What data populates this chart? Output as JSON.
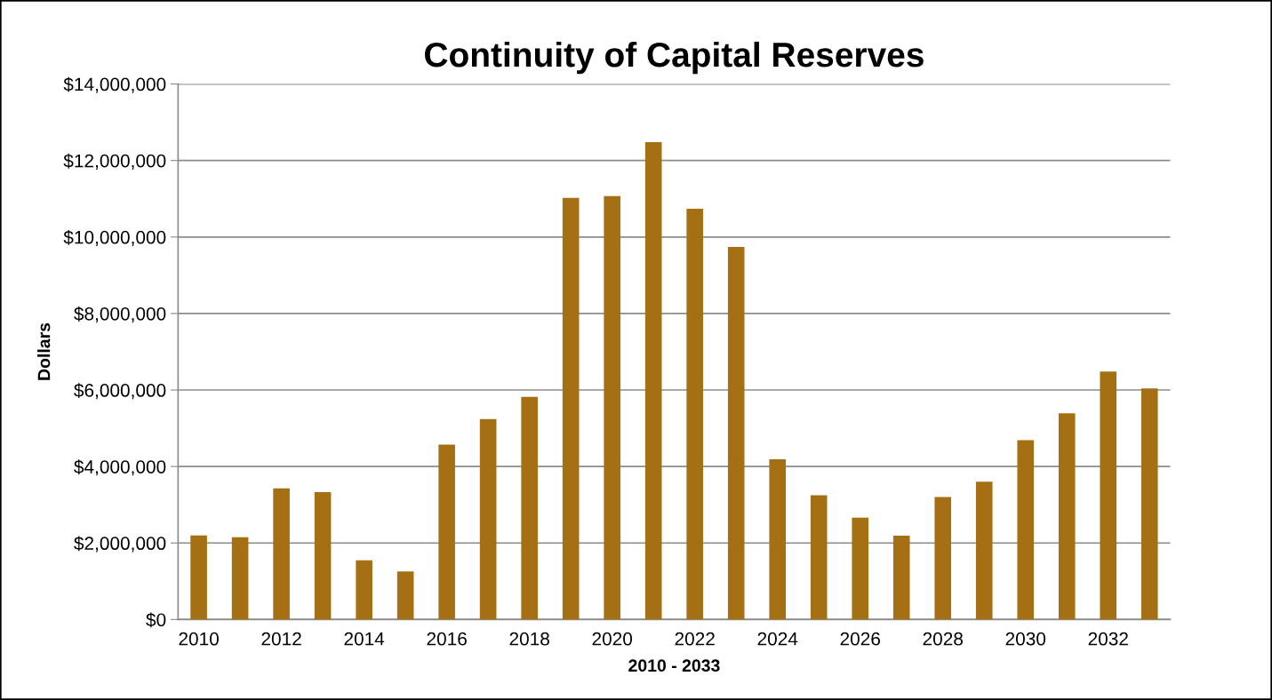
{
  "chart_data": {
    "type": "bar",
    "title": "Continuity of Capital Reserves",
    "xlabel": "2010 - 2033",
    "ylabel": "Dollars",
    "categories": [
      "2010",
      null,
      "2012",
      null,
      "2014",
      null,
      "2016",
      null,
      "2018",
      null,
      "2020",
      null,
      "2022",
      null,
      "2024",
      null,
      "2026",
      null,
      "2028",
      null,
      "2030",
      null,
      "2032",
      null
    ],
    "values": [
      2200000,
      2150000,
      3430000,
      3330000,
      1550000,
      1260000,
      4570000,
      5240000,
      5820000,
      11020000,
      11070000,
      12480000,
      10740000,
      9740000,
      4190000,
      3250000,
      2660000,
      2190000,
      3200000,
      3600000,
      4690000,
      5390000,
      6480000,
      6040000
    ],
    "color": "#a57014",
    "ylim": [
      0,
      14000000
    ],
    "yticks": [
      {
        "value": 0,
        "label": "$0"
      },
      {
        "value": 2000000,
        "label": "$2,000,000"
      },
      {
        "value": 4000000,
        "label": "$4,000,000"
      },
      {
        "value": 6000000,
        "label": "$6,000,000"
      },
      {
        "value": 8000000,
        "label": "$8,000,000"
      },
      {
        "value": 10000000,
        "label": "$10,000,000"
      },
      {
        "value": 12000000,
        "label": "$12,000,000"
      },
      {
        "value": 14000000,
        "label": "$14,000,000"
      }
    ],
    "grid": "y",
    "legend": false
  }
}
